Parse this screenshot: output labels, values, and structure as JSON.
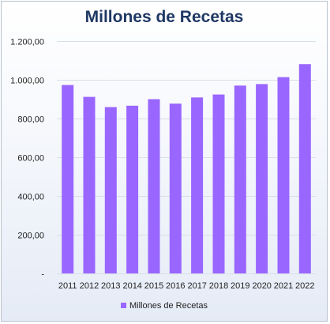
{
  "colors": {
    "bar": "#9966ff",
    "grid": "#d9dfe8",
    "title": "#1f3864"
  },
  "chart_data": {
    "type": "bar",
    "title": "Millones de Recetas",
    "xlabel": "",
    "ylabel": "",
    "categories": [
      "2011",
      "2012",
      "2013",
      "2014",
      "2015",
      "2016",
      "2017",
      "2018",
      "2019",
      "2020",
      "2021",
      "2022"
    ],
    "series": [
      {
        "name": "Millones de Recetas",
        "values": [
          973,
          912,
          859,
          866,
          900,
          877,
          909,
          924,
          970,
          978,
          1014,
          1081
        ]
      }
    ],
    "ylim": [
      0,
      1200
    ],
    "yticks": [
      0,
      200,
      400,
      600,
      800,
      1000,
      1200
    ],
    "ytick_labels": [
      "-",
      "200,00",
      "400,00",
      "600,00",
      "800,00",
      "1.000,00",
      "1.200,00"
    ],
    "grid": true,
    "legend_position": "bottom"
  }
}
